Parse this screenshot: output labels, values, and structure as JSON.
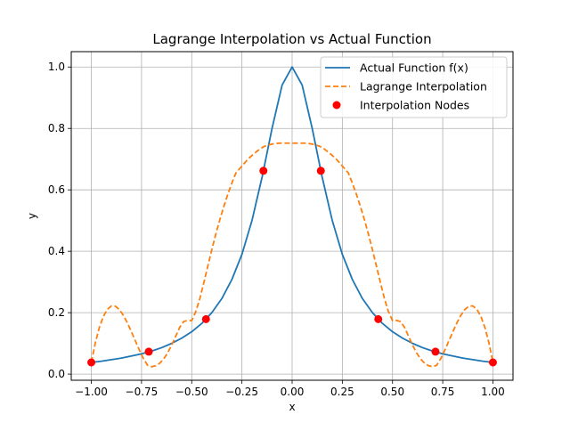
{
  "chart_data": {
    "type": "line",
    "title": "Lagrange Interpolation vs Actual Function",
    "xlabel": "x",
    "ylabel": "y",
    "xlim": [
      -1.1,
      1.1
    ],
    "ylim": [
      -0.02,
      1.05
    ],
    "xticks": [
      -1.0,
      -0.75,
      -0.5,
      -0.25,
      0.0,
      0.25,
      0.5,
      0.75,
      1.0
    ],
    "xtick_labels": [
      "−1.00",
      "−0.75",
      "−0.50",
      "−0.25",
      "0.00",
      "0.25",
      "0.50",
      "0.75",
      "1.00"
    ],
    "yticks": [
      0.0,
      0.2,
      0.4,
      0.6,
      0.8,
      1.0
    ],
    "ytick_labels": [
      "0.0",
      "0.2",
      "0.4",
      "0.6",
      "0.8",
      "1.0"
    ],
    "grid": true,
    "legend_position": "top-right",
    "series": [
      {
        "name": "Actual Function f(x)",
        "style": "solid",
        "color": "#1f77b4",
        "x": [
          -1.0,
          -0.95,
          -0.9,
          -0.85,
          -0.8,
          -0.75,
          -0.7,
          -0.65,
          -0.6,
          -0.55,
          -0.5,
          -0.45,
          -0.4,
          -0.35,
          -0.3,
          -0.25,
          -0.2,
          -0.15,
          -0.1,
          -0.05,
          0.0,
          0.05,
          0.1,
          0.15,
          0.2,
          0.25,
          0.3,
          0.35,
          0.4,
          0.45,
          0.5,
          0.55,
          0.6,
          0.65,
          0.7,
          0.75,
          0.8,
          0.85,
          0.9,
          0.95,
          1.0
        ],
        "y": [
          0.038,
          0.042,
          0.047,
          0.052,
          0.059,
          0.066,
          0.075,
          0.086,
          0.1,
          0.117,
          0.138,
          0.165,
          0.2,
          0.246,
          0.308,
          0.39,
          0.5,
          0.64,
          0.8,
          0.941,
          1.0,
          0.941,
          0.8,
          0.64,
          0.5,
          0.39,
          0.308,
          0.246,
          0.2,
          0.165,
          0.138,
          0.117,
          0.1,
          0.086,
          0.075,
          0.066,
          0.059,
          0.052,
          0.047,
          0.042,
          0.038
        ]
      },
      {
        "name": "Lagrange Interpolation",
        "style": "dashed",
        "color": "#ff7f0e",
        "x": [
          -1.0,
          -0.98,
          -0.96,
          -0.94,
          -0.92,
          -0.9,
          -0.88,
          -0.86,
          -0.84,
          -0.82,
          -0.8,
          -0.78,
          -0.76,
          -0.74,
          -0.72,
          -0.7,
          -0.68,
          -0.66,
          -0.64,
          -0.62,
          -0.6,
          -0.58,
          -0.56,
          -0.54,
          -0.52,
          -0.5,
          -0.48,
          -0.46,
          -0.44,
          -0.42,
          -0.4,
          -0.38,
          -0.36,
          -0.34,
          -0.32,
          -0.3,
          -0.28,
          -0.26,
          -0.24,
          -0.22,
          -0.2,
          -0.18,
          -0.16,
          -0.14,
          -0.12,
          -0.1,
          -0.08,
          -0.06,
          -0.04,
          -0.02,
          0.0,
          0.02,
          0.04,
          0.06,
          0.08,
          0.1,
          0.12,
          0.14,
          0.16,
          0.18,
          0.2,
          0.22,
          0.24,
          0.26,
          0.28,
          0.3,
          0.32,
          0.34,
          0.36,
          0.38,
          0.4,
          0.42,
          0.44,
          0.46,
          0.48,
          0.5,
          0.52,
          0.54,
          0.56,
          0.58,
          0.6,
          0.62,
          0.64,
          0.66,
          0.68,
          0.7,
          0.72,
          0.74,
          0.76,
          0.78,
          0.8,
          0.82,
          0.84,
          0.86,
          0.88,
          0.9,
          0.92,
          0.94,
          0.96,
          0.98,
          1.0
        ],
        "y": [
          0.038,
          0.102,
          0.152,
          0.188,
          0.211,
          0.222,
          0.221,
          0.21,
          0.191,
          0.166,
          0.137,
          0.107,
          0.077,
          0.05,
          0.029,
          0.024,
          0.027,
          0.035,
          0.049,
          0.069,
          0.094,
          0.123,
          0.152,
          0.171,
          0.175,
          0.174,
          0.203,
          0.245,
          0.297,
          0.351,
          0.405,
          0.456,
          0.503,
          0.546,
          0.586,
          0.622,
          0.655,
          0.67,
          0.685,
          0.7,
          0.712,
          0.723,
          0.733,
          0.741,
          0.746,
          0.749,
          0.751,
          0.752,
          0.752,
          0.752,
          0.752,
          0.752,
          0.752,
          0.752,
          0.751,
          0.749,
          0.746,
          0.741,
          0.733,
          0.723,
          0.712,
          0.7,
          0.685,
          0.67,
          0.655,
          0.622,
          0.586,
          0.546,
          0.503,
          0.456,
          0.405,
          0.351,
          0.297,
          0.245,
          0.203,
          0.174,
          0.175,
          0.171,
          0.152,
          0.123,
          0.094,
          0.069,
          0.049,
          0.035,
          0.027,
          0.024,
          0.029,
          0.05,
          0.077,
          0.107,
          0.137,
          0.166,
          0.191,
          0.21,
          0.221,
          0.222,
          0.211,
          0.188,
          0.152,
          0.102,
          0.038
        ]
      },
      {
        "name": "Interpolation Nodes",
        "style": "scatter",
        "color": "#ff0000",
        "x": [
          -1.0,
          -0.714,
          -0.429,
          -0.143,
          0.143,
          0.429,
          0.714,
          1.0
        ],
        "y": [
          0.038,
          0.073,
          0.179,
          0.662,
          0.662,
          0.179,
          0.073,
          0.038
        ]
      }
    ]
  }
}
